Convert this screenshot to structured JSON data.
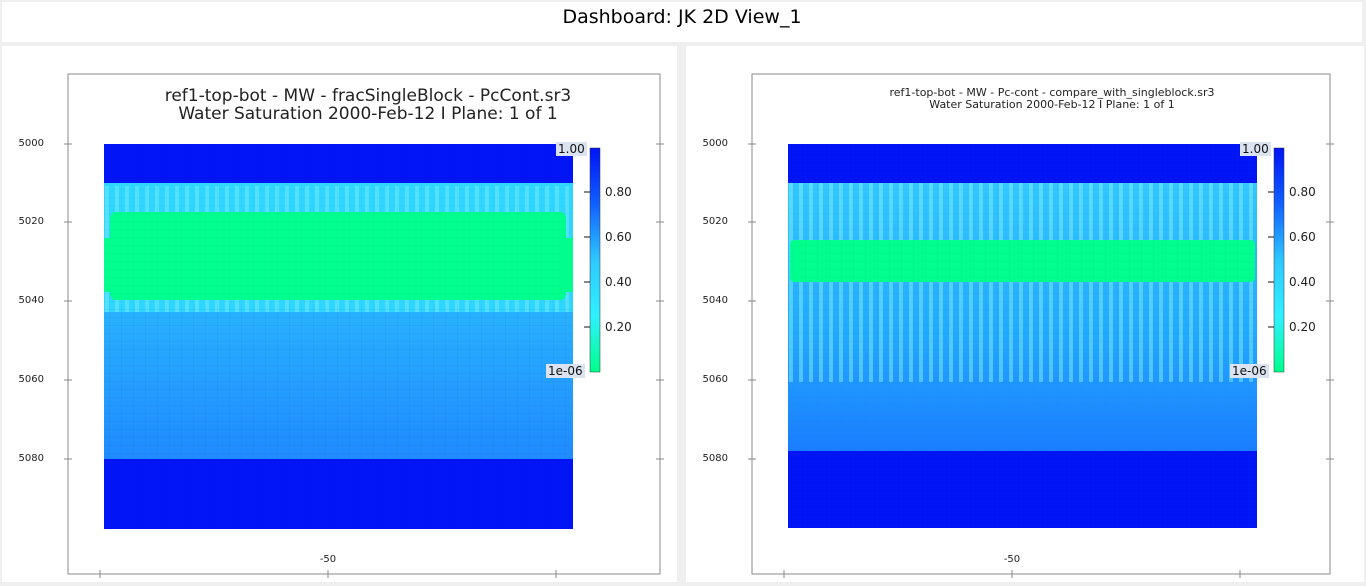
{
  "dashboard": {
    "title": "Dashboard: JK 2D View_1"
  },
  "views": [
    {
      "title_line1": "ref1-top-bot - MW - fracSingleBlock - PcCont.sr3",
      "title_line2": "Water Saturation  2000-Feb-12   I Plane: 1 of 1",
      "y_ticks": [
        "5000",
        "5020",
        "5040",
        "5060",
        "5080"
      ],
      "x_ticks": [
        "-50"
      ],
      "colorbar": {
        "max": "1.00",
        "min": "1e-06",
        "ticks": [
          "0.80",
          "0.60",
          "0.40",
          "0.20"
        ]
      }
    },
    {
      "title_line1": "ref1-top-bot - MW - Pc-cont - compare_with_singleblock.sr3",
      "title_line2": "Water Saturation  2000-Feb-12   I Plane: 1 of 1",
      "y_ticks": [
        "5000",
        "5020",
        "5040",
        "5060",
        "5080"
      ],
      "x_ticks": [
        "-50"
      ],
      "colorbar": {
        "max": "1.00",
        "min": "1e-06",
        "ticks": [
          "0.80",
          "0.60",
          "0.40",
          "0.20"
        ]
      }
    }
  ],
  "colors": {
    "blue_top": "#0014f5",
    "green_band": "#00ff8c",
    "light_cyan": "#30d8ff",
    "mid_blue": "#1aa0ff",
    "deep_blue": "#1060ff"
  }
}
